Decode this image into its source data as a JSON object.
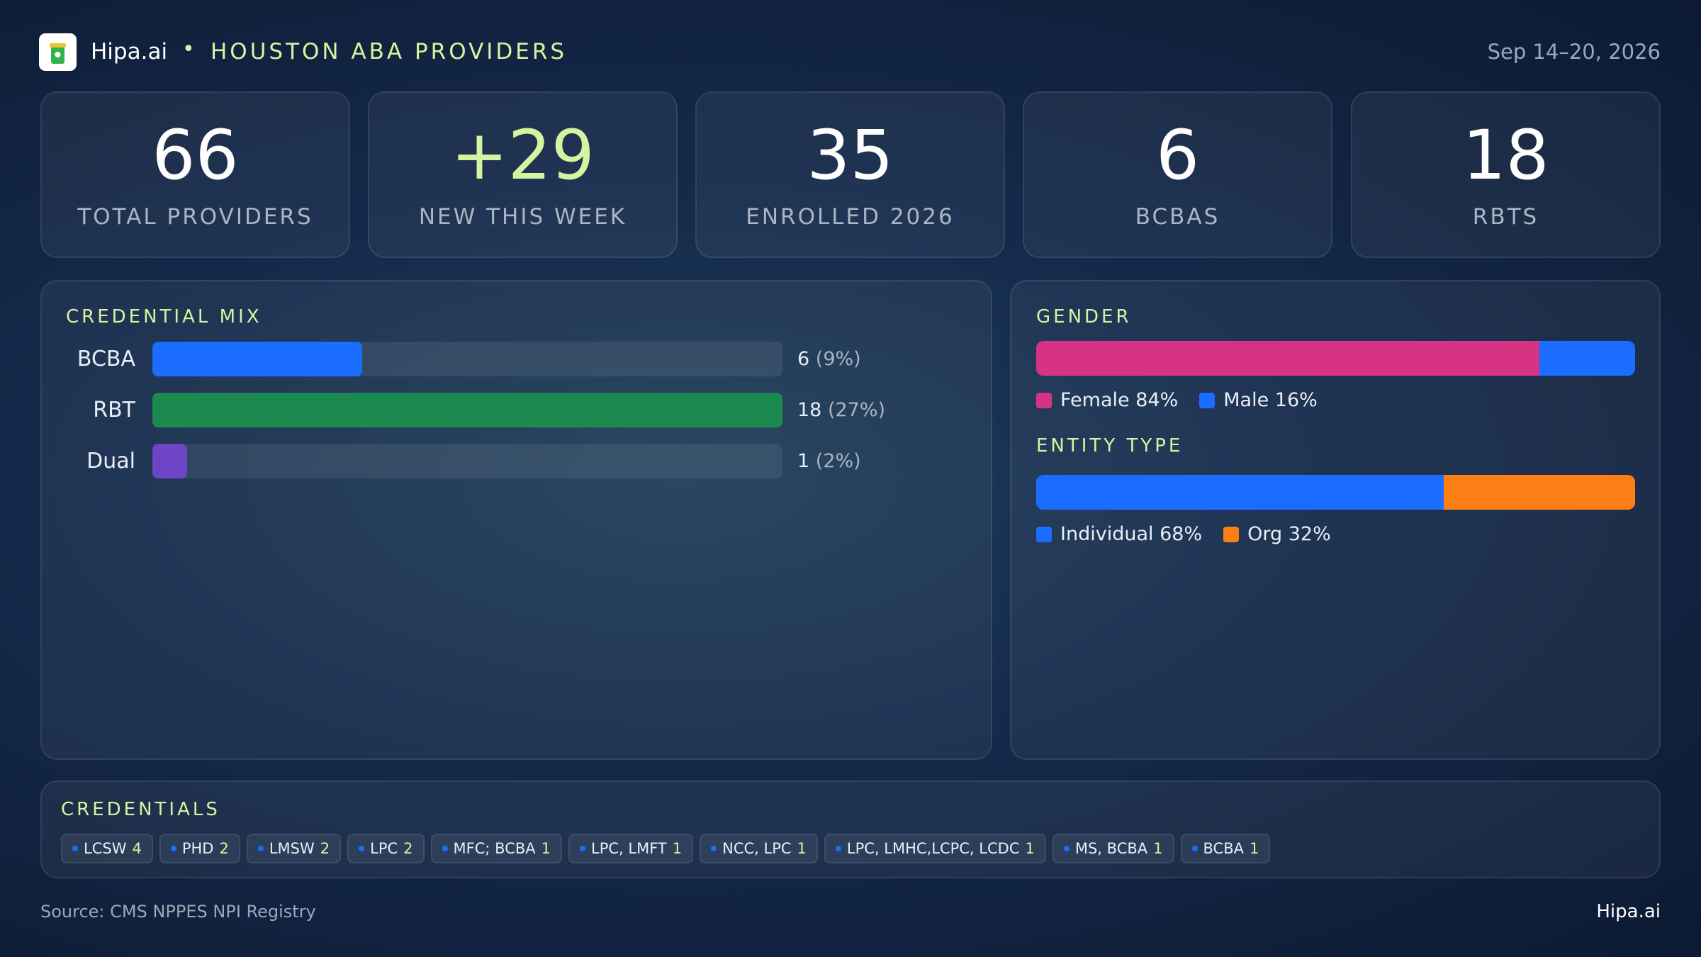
{
  "header": {
    "brand": "Hipa.ai",
    "title": "HOUSTON ABA PROVIDERS",
    "date_range": "Sep 14–20, 2026"
  },
  "kpis": [
    {
      "value": 66,
      "label": "TOTAL PROVIDERS"
    },
    {
      "value": "+29",
      "label": "NEW THIS WEEK",
      "accent": true
    },
    {
      "value": 35,
      "label": "ENROLLED 2026"
    },
    {
      "value": 6,
      "label": "BCBAS"
    },
    {
      "value": 18,
      "label": "RBTS"
    }
  ],
  "credential_mix": {
    "title": "CREDENTIAL MIX",
    "categories": [
      "BCBA",
      "RBT",
      "Dual"
    ],
    "values": [
      6,
      18,
      1
    ],
    "share_labels": [
      "(9%)",
      "(27%)",
      "(2%)"
    ],
    "colors": [
      "#1a6dff",
      "#1c8a50",
      "#6f45c8"
    ]
  },
  "gender": {
    "title": "GENDER",
    "segments": [
      {
        "name": "Female",
        "value": 84,
        "label": "84%",
        "color": "#d63384"
      },
      {
        "name": "Male",
        "value": 16,
        "label": "16%",
        "color": "#1a6dff"
      }
    ]
  },
  "entity_type": {
    "title": "ENTITY TYPE",
    "segments": [
      {
        "name": "Individual",
        "value": 68,
        "label": "68%",
        "color": "#1a6dff"
      },
      {
        "name": "Org",
        "value": 32,
        "label": "32%",
        "color": "#fd7e14"
      }
    ]
  },
  "credentials": {
    "title": "CREDENTIALS",
    "items": [
      {
        "name": "LCSW",
        "count": 4
      },
      {
        "name": "PHD",
        "count": 2
      },
      {
        "name": "LMSW",
        "count": 2
      },
      {
        "name": "LPC",
        "count": 2
      },
      {
        "name": "MFC; BCBA",
        "count": 1
      },
      {
        "name": "LPC, LMFT",
        "count": 1
      },
      {
        "name": "NCC, LPC",
        "count": 1
      },
      {
        "name": "LPC, LMHC,LCPC, LCDC",
        "count": 1
      },
      {
        "name": "MS, BCBA",
        "count": 1
      },
      {
        "name": "BCBA",
        "count": 1
      }
    ]
  },
  "footer": {
    "source": "Source: CMS NPPES NPI Registry",
    "brand": "Hipa.ai"
  }
}
